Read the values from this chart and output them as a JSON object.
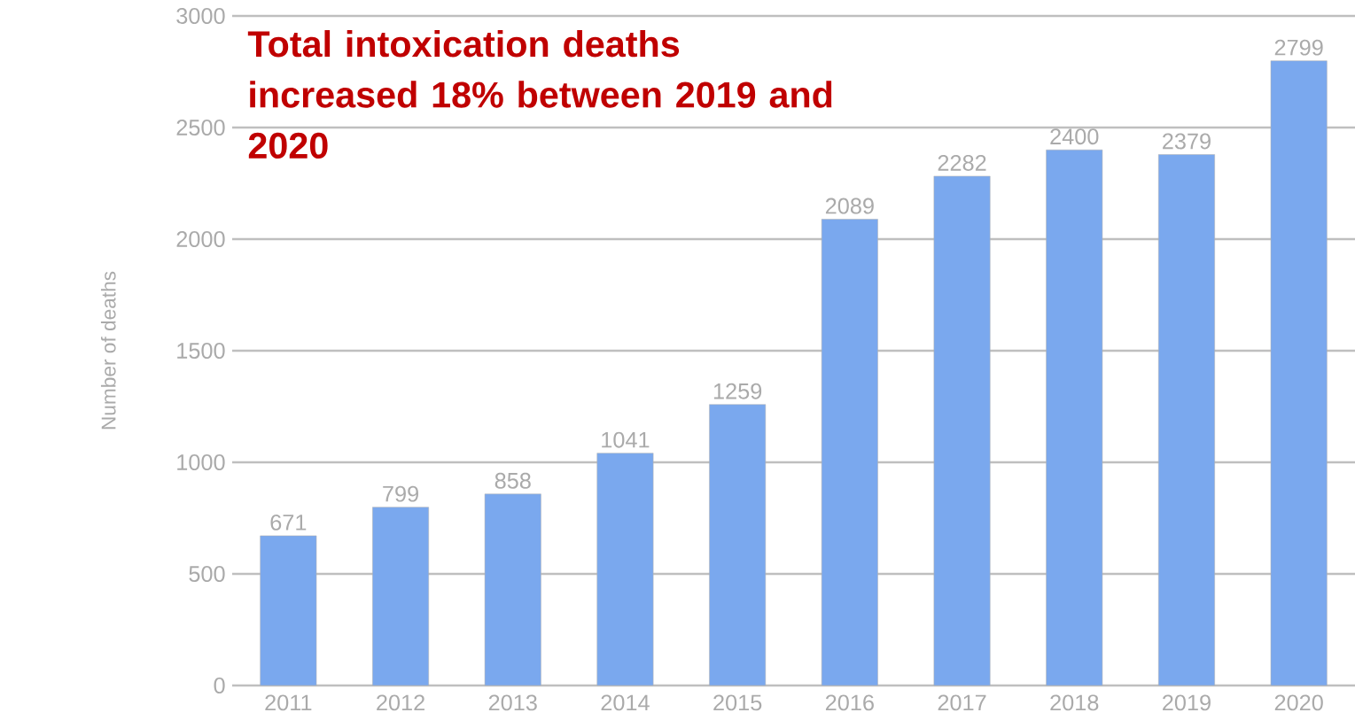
{
  "chart_data": {
    "type": "bar",
    "title": "Total intoxication deaths increased 18% between 2019 and 2020",
    "ylabel": "Number of deaths",
    "categories": [
      "2011",
      "2012",
      "2013",
      "2014",
      "2015",
      "2016",
      "2017",
      "2018",
      "2019",
      "2020"
    ],
    "values": [
      671,
      799,
      858,
      1041,
      1259,
      2089,
      2282,
      2400,
      2379,
      2799
    ],
    "color": "#7aa8ee",
    "ylim": [
      0,
      3000
    ],
    "yticks": [
      0,
      500,
      1000,
      1500,
      2000,
      2500,
      3000
    ],
    "grid": "y",
    "data_labels": true
  }
}
